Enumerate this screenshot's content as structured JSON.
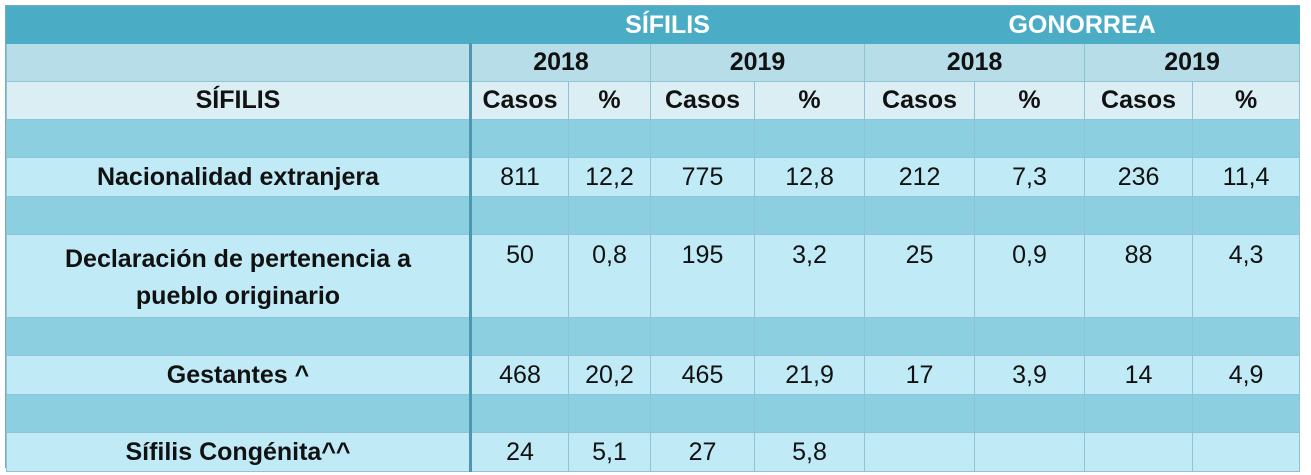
{
  "header": {
    "group1": "SÍFILIS",
    "group2": "GONORREA",
    "years": [
      "2018",
      "2019",
      "2018",
      "2019"
    ],
    "row_label": "SÍFILIS",
    "cols": [
      "Casos",
      "%",
      "Casos",
      "%",
      "Casos",
      "%",
      "Casos",
      "%"
    ]
  },
  "rows": [
    {
      "label": "Nacionalidad extranjera",
      "values": [
        "811",
        "12,2",
        "775",
        "12,8",
        "212",
        "7,3",
        "236",
        "11,4"
      ]
    },
    {
      "label_line1": "Declaración de pertenencia a",
      "label_line2": "pueblo originario",
      "values": [
        "50",
        "0,8",
        "195",
        "3,2",
        "25",
        "0,9",
        "88",
        "4,3"
      ]
    },
    {
      "label": "Gestantes ^",
      "values": [
        "468",
        "20,2",
        "465",
        "21,9",
        "17",
        "3,9",
        "14",
        "4,9"
      ]
    },
    {
      "label": "Sífilis Congénita^^",
      "values": [
        "24",
        "5,1",
        "27",
        "5,8",
        "",
        "",
        "",
        ""
      ]
    }
  ]
}
